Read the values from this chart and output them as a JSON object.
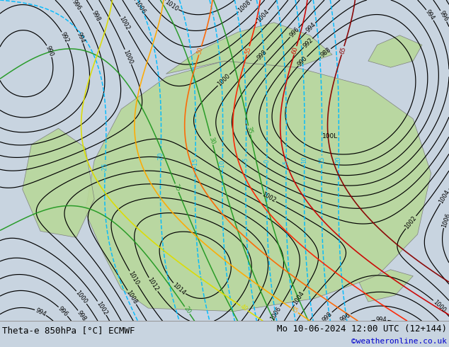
{
  "title_left": "Theta-e 850hPa [°C] ECMWF",
  "title_right": "Mo 10-06-2024 12:00 UTC (12+144)",
  "copyright": "©weatheronline.co.uk",
  "bg_color": "#c8d4e0",
  "map_bg": "#c8d4e0",
  "bottom_bar_color": "#e0e0e0",
  "bottom_text_color": "#000000",
  "copyright_color": "#0000cc",
  "title_fontsize": 9.0,
  "copyright_fontsize": 8.0,
  "figsize": [
    6.34,
    4.9
  ],
  "dpi": 100
}
